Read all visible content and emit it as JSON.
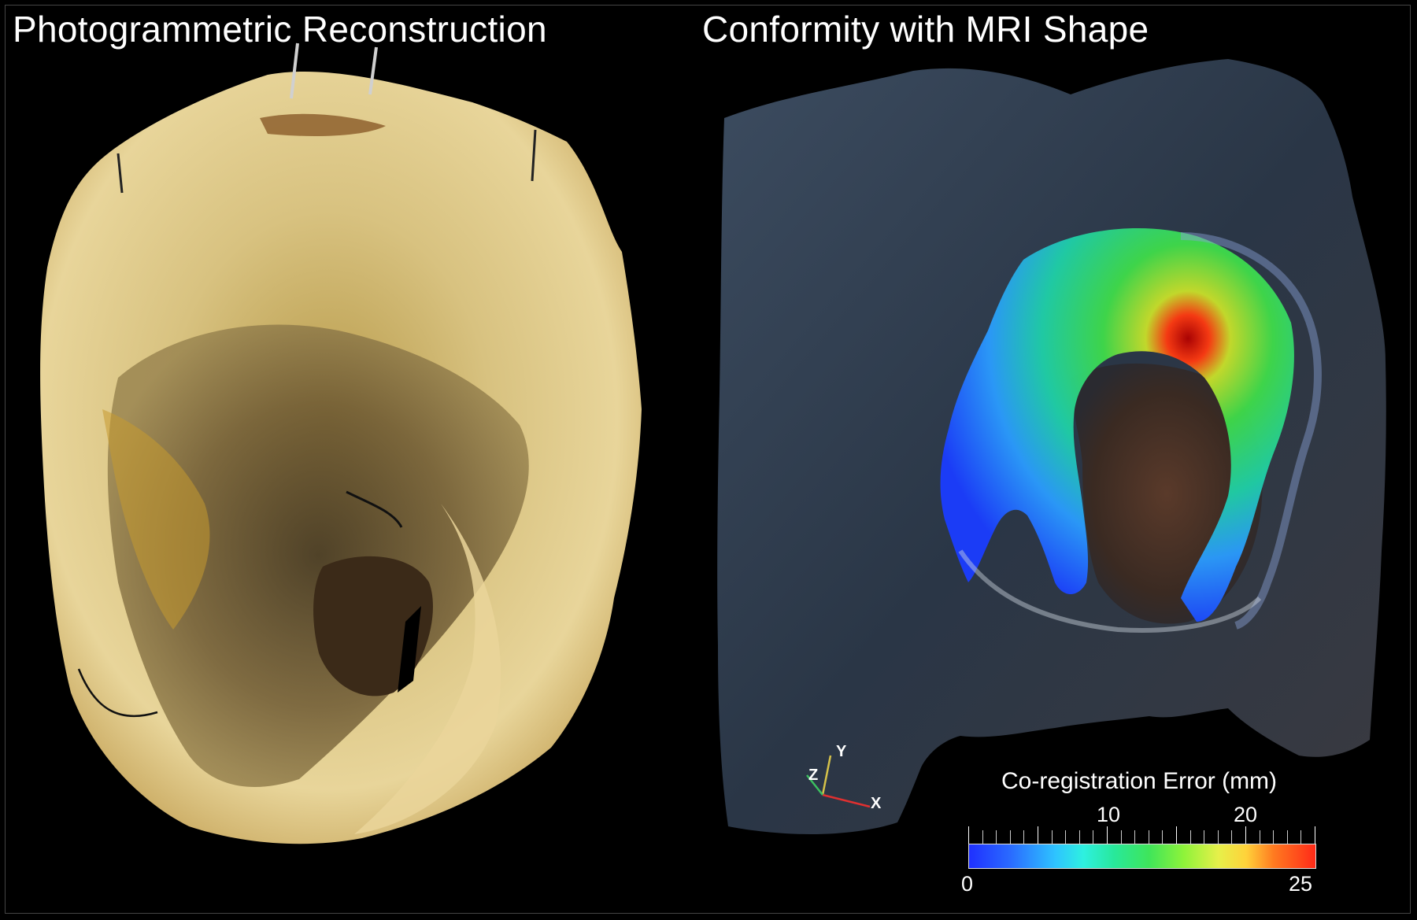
{
  "panels": {
    "left": {
      "title": "Photogrammetric Reconstruction"
    },
    "right": {
      "title": "Conformity with MRI Shape"
    }
  },
  "colorbar": {
    "label": "Co-registration Error (mm)",
    "min": "0",
    "max": "25",
    "ticks": [
      "10",
      "20"
    ]
  },
  "axes": {
    "x": "X",
    "y": "Y",
    "z": "Z"
  },
  "colors": {
    "background": "#000000",
    "text": "#ffffff",
    "tissue": "#d9c27a",
    "surface": "#2d3b4c"
  }
}
